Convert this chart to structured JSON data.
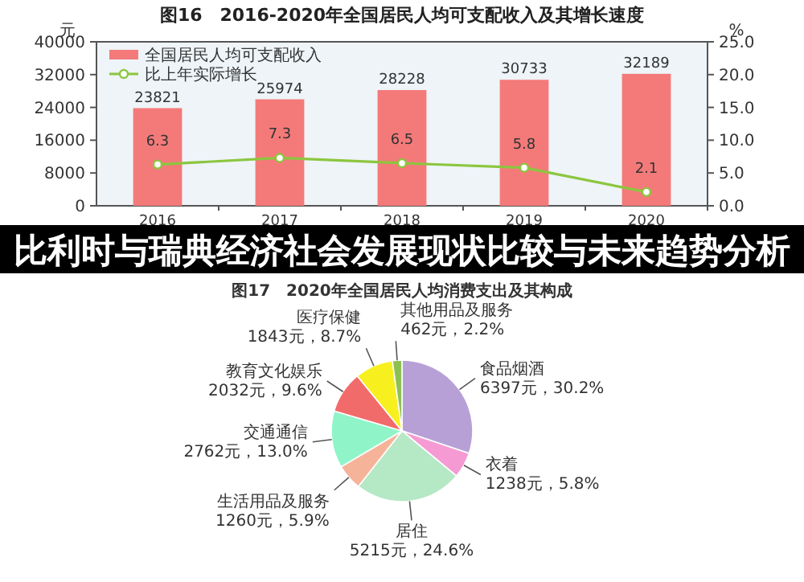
{
  "chart_data": [
    {
      "type": "bar",
      "title": "图16　2016-2020年全国居民人均可支配收入及其增长速度",
      "ylabel": "元",
      "y2label": "%",
      "categories": [
        "2016",
        "2017",
        "2018",
        "2019",
        "2020"
      ],
      "series": [
        {
          "name": "全国居民人均可支配收入",
          "color": "#f47a7a",
          "values": [
            23821,
            25974,
            28228,
            30733,
            32189
          ]
        },
        {
          "name": "比上年实际增长",
          "type": "line",
          "axis": "y2",
          "color": "#8cc63f",
          "values": [
            6.3,
            7.3,
            6.5,
            5.8,
            2.1
          ]
        }
      ],
      "ylim": [
        0,
        40000
      ],
      "yticks": [
        0,
        8000,
        16000,
        24000,
        32000,
        40000
      ],
      "y2lim": [
        0,
        25
      ],
      "y2ticks": [
        {
          "value": 0,
          "label": "0.0"
        },
        {
          "value": 5,
          "label": "5.0"
        },
        {
          "value": 10,
          "label": "10.0"
        },
        {
          "value": 15,
          "label": "15.0"
        },
        {
          "value": 20,
          "label": "20.0"
        },
        {
          "value": 25,
          "label": "25.0"
        }
      ],
      "data_labels": true,
      "legend": "top left",
      "marker": "circle",
      "annotations": [
        "比利时与瑞典经济社会发展现状比较与未来趋势分析"
      ]
    },
    {
      "type": "pie",
      "title": "图17　2020年全国居民人均消费支出及其构成",
      "categories": [
        "食品烟酒",
        "衣着",
        "居住",
        "生活用品及服务",
        "交通通信",
        "教育文化娱乐",
        "医疗保健",
        "其他用品及服务"
      ],
      "values": [
        6397,
        1238,
        5215,
        1260,
        2762,
        2032,
        1843,
        462
      ],
      "value_labels": [
        "6397元，30.2%",
        "1238元，5.8%",
        "5215元，24.6%",
        "1260元，5.9%",
        "2762元，13.0%",
        "2032元，9.6%",
        "1843元，8.7%",
        "462元，2.2%"
      ],
      "colors": [
        "#b7a0d6",
        "#f59ad3",
        "#b5e8c5",
        "#f5b49a",
        "#8ff5c8",
        "#f26b6b",
        "#f7f01e",
        "#8cc152"
      ]
    }
  ]
}
